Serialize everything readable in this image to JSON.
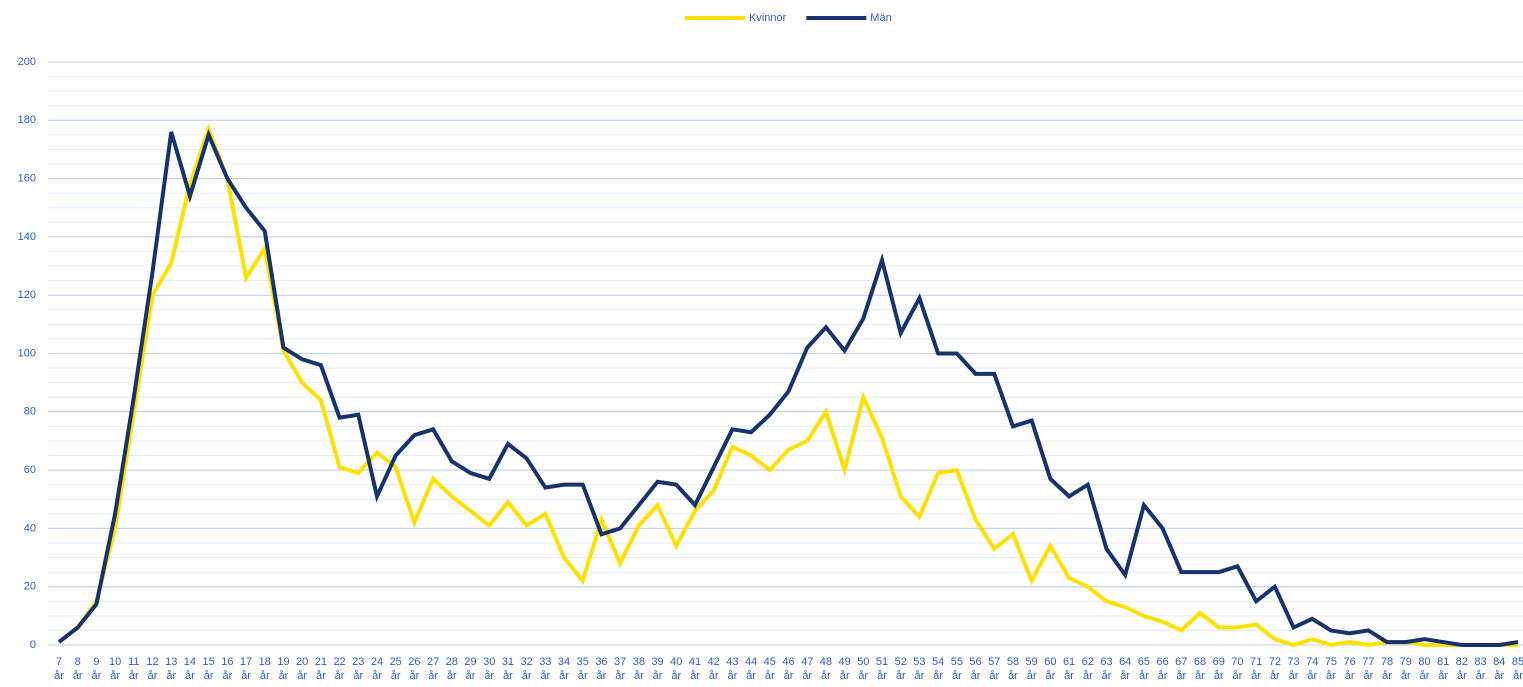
{
  "chart_data": {
    "type": "line",
    "categories": [
      "7 år",
      "8 år",
      "9 år",
      "10 år",
      "11 år",
      "12 år",
      "13 år",
      "14 år",
      "15 år",
      "16 år",
      "17 år",
      "18 år",
      "19 år",
      "20 år",
      "21 år",
      "22 år",
      "23 år",
      "24 år",
      "25 år",
      "26 år",
      "27 år",
      "28 år",
      "29 år",
      "30 år",
      "31 år",
      "32 år",
      "33 år",
      "34 år",
      "35 år",
      "36 år",
      "37 år",
      "38 år",
      "39 år",
      "40 år",
      "41 år",
      "42 år",
      "43 år",
      "44 år",
      "45 år",
      "46 år",
      "47 år",
      "48 år",
      "49 år",
      "50 år",
      "51 år",
      "52 år",
      "53 år",
      "54 år",
      "55 år",
      "56 år",
      "57 år",
      "58 år",
      "59 år",
      "60 år",
      "61 år",
      "62 år",
      "63 år",
      "64 år",
      "65 år",
      "66 år",
      "67 år",
      "68 år",
      "69 år",
      "70 år",
      "71 år",
      "72 år",
      "73 år",
      "74 år",
      "75 år",
      "76 år",
      "77 år",
      "78 år",
      "79 år",
      "80 år",
      "81 år",
      "82 år",
      "83 år",
      "84 år",
      "85 år"
    ],
    "series": [
      {
        "name": "Kvinnor",
        "color": "#ffe000",
        "values": [
          1,
          6,
          15,
          40,
          80,
          120,
          131,
          158,
          177,
          160,
          126,
          136,
          101,
          90,
          84,
          61,
          59,
          66,
          61,
          42,
          57,
          51,
          46,
          41,
          49,
          41,
          45,
          30,
          22,
          43,
          28,
          41,
          48,
          34,
          46,
          53,
          68,
          65,
          60,
          67,
          70,
          80,
          60,
          85,
          71,
          51,
          44,
          59,
          60,
          43,
          33,
          38,
          22,
          34,
          23,
          20,
          15,
          13,
          10,
          8,
          5,
          11,
          6,
          6,
          7,
          2,
          0,
          2,
          0,
          1,
          0,
          1,
          1,
          0,
          0,
          0,
          0,
          0,
          0
        ]
      },
      {
        "name": "Män",
        "color": "#17336e",
        "values": [
          1,
          6,
          14,
          45,
          85,
          128,
          176,
          154,
          175,
          160,
          150,
          142,
          102,
          98,
          96,
          78,
          79,
          51,
          65,
          72,
          74,
          63,
          59,
          57,
          69,
          64,
          54,
          55,
          55,
          38,
          40,
          48,
          56,
          55,
          48,
          61,
          74,
          73,
          79,
          87,
          102,
          109,
          101,
          112,
          132,
          107,
          119,
          100,
          100,
          93,
          93,
          75,
          77,
          57,
          51,
          55,
          33,
          24,
          48,
          40,
          25,
          25,
          25,
          27,
          15,
          20,
          6,
          9,
          5,
          4,
          5,
          1,
          1,
          2,
          1,
          0,
          0,
          0,
          1
        ]
      }
    ],
    "ylim": [
      0,
      200
    ],
    "yticks": [
      0,
      20,
      40,
      60,
      80,
      100,
      120,
      140,
      160,
      180,
      200
    ],
    "yminorticks": [
      0,
      5,
      10,
      15,
      20,
      25,
      30,
      35,
      40,
      45,
      50,
      55,
      60,
      65,
      70,
      75,
      80,
      85,
      90,
      95,
      100,
      105,
      110,
      115,
      120,
      125,
      130,
      135,
      140,
      145,
      150,
      155,
      160,
      165,
      170,
      175,
      180,
      185,
      190,
      195,
      200
    ],
    "grid": true,
    "legend": "top"
  }
}
